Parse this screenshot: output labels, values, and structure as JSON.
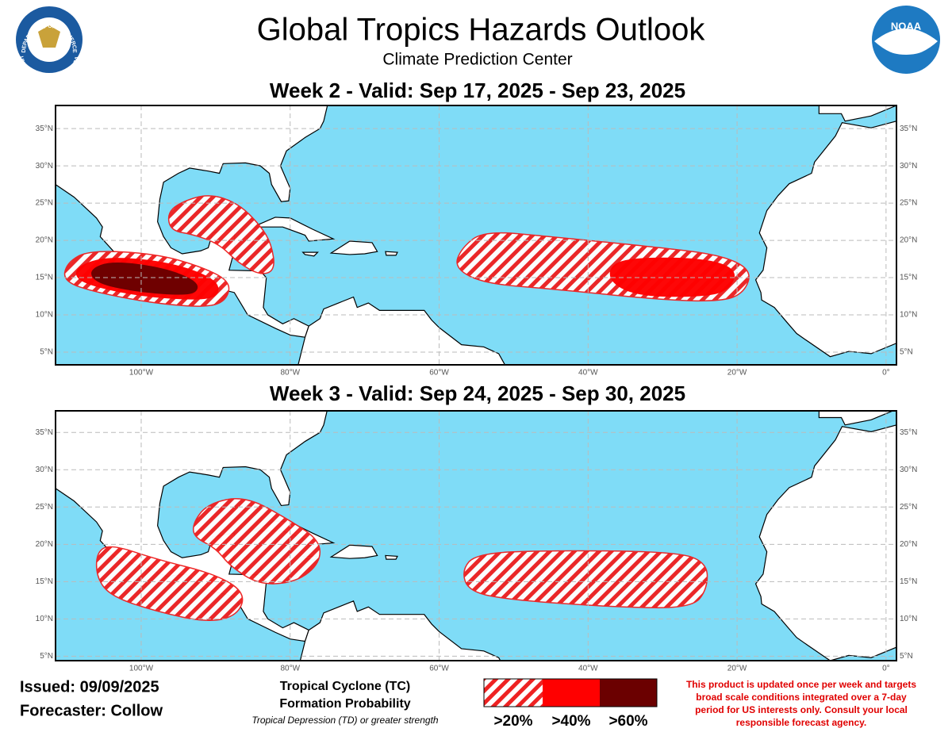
{
  "header": {
    "title": "Global Tropics Hazards Outlook",
    "subtitle": "Climate Prediction Center",
    "seal_text": [
      "DEPARTMENT OF COMMERCE",
      "UNITED STATES OF AMERICA"
    ],
    "noaa_logo": "NOAA"
  },
  "map": {
    "lonlim": [
      -111.5,
      1.4
    ],
    "lon_ticks": [
      {
        "value": -100,
        "label": "100°W"
      },
      {
        "value": -80,
        "label": "80°W"
      },
      {
        "value": -60,
        "label": "60°W"
      },
      {
        "value": -40,
        "label": "40°W"
      },
      {
        "value": -20,
        "label": "20°W"
      },
      {
        "value": 0,
        "label": "0°"
      }
    ],
    "lat_ticks": [
      {
        "value": 5,
        "label": "5°N"
      },
      {
        "value": 10,
        "label": "10°N"
      },
      {
        "value": 15,
        "label": "15°N"
      },
      {
        "value": 20,
        "label": "20°N"
      },
      {
        "value": 25,
        "label": "25°N"
      },
      {
        "value": 30,
        "label": "30°N"
      },
      {
        "value": 35,
        "label": "35°N"
      }
    ],
    "panels": [
      {
        "title": "Week 2 - Valid: Sep 17, 2025 - Sep 23, 2025",
        "latlim": [
          3.3,
          38.1
        ]
      },
      {
        "title": "Week 3 - Valid: Sep 24, 2025 - Sep 30, 2025",
        "latlim": [
          4.4,
          37.9
        ]
      }
    ]
  },
  "footer": {
    "issued": "Issued: 09/09/2025",
    "forecaster": "Forecaster: Collow",
    "legend_title": [
      "Tropical Cyclone (TC)",
      "Formation Probability"
    ],
    "legend_note": "Tropical Depression (TD) or greater strength",
    "legend_levels": [
      ">20%",
      ">40%",
      ">60%"
    ],
    "disclaimer": [
      "This product is updated once per week and targets",
      "broad scale conditions integrated over a 7-day",
      "period for US interests only. Consult your local",
      "responsible forecast agency."
    ]
  }
}
